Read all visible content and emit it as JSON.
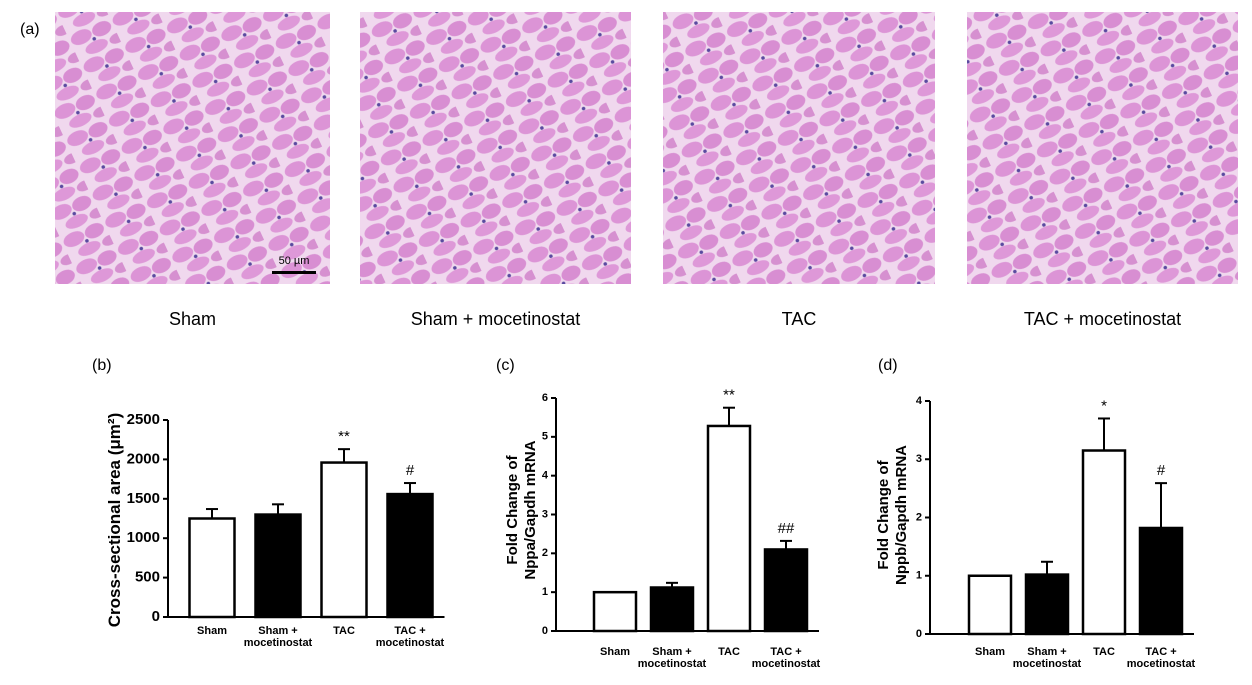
{
  "panel_a": {
    "label": "(a)",
    "scale_bar": "50 µm",
    "images": [
      {
        "caption": "Sham"
      },
      {
        "caption": "Sham + mocetinostat"
      },
      {
        "caption": "TAC"
      },
      {
        "caption": "TAC + mocetinostat"
      }
    ]
  },
  "chart_data": [
    {
      "type": "bar",
      "label": "(b)",
      "y_label": "Cross-sectional area (μm²)",
      "categories": [
        "Sham",
        "Sham +\nmocetinostat",
        "TAC",
        "TAC +\nmocetinostat"
      ],
      "values": [
        1250,
        1300,
        1960,
        1560
      ],
      "errors": [
        120,
        130,
        170,
        140
      ],
      "annotations": [
        null,
        null,
        "**",
        "#"
      ],
      "colors": [
        "#ffffff",
        "#000000",
        "#ffffff",
        "#000000"
      ],
      "ylim": [
        0,
        2500
      ],
      "yticks": [
        0,
        500,
        1000,
        1500,
        2000,
        2500
      ]
    },
    {
      "type": "bar",
      "label": "(c)",
      "y_label": "Fold Change of\nNppa/Gapdh mRNA",
      "categories": [
        "Sham",
        "Sham +\nmocetinostat",
        "TAC",
        "TAC +\nmocetinostat"
      ],
      "values": [
        1.0,
        1.12,
        5.28,
        2.1
      ],
      "errors": [
        0,
        0.12,
        0.47,
        0.22
      ],
      "annotations": [
        null,
        null,
        "**",
        "##"
      ],
      "colors": [
        "#ffffff",
        "#000000",
        "#ffffff",
        "#000000"
      ],
      "ylim": [
        0,
        6
      ],
      "yticks": [
        0,
        1,
        2,
        3,
        4,
        5,
        6
      ]
    },
    {
      "type": "bar",
      "label": "(d)",
      "y_label": "Fold Change of\nNppb/Gapdh mRNA",
      "categories": [
        "Sham",
        "Sham +\nmocetinostat",
        "TAC",
        "TAC +\nmocetinostat"
      ],
      "values": [
        1.0,
        1.02,
        3.15,
        1.82
      ],
      "errors": [
        0,
        0.22,
        0.55,
        0.77
      ],
      "annotations": [
        null,
        null,
        "*",
        "#"
      ],
      "colors": [
        "#ffffff",
        "#000000",
        "#ffffff",
        "#000000"
      ],
      "ylim": [
        0,
        4
      ],
      "yticks": [
        0,
        1,
        2,
        3,
        4
      ]
    }
  ]
}
